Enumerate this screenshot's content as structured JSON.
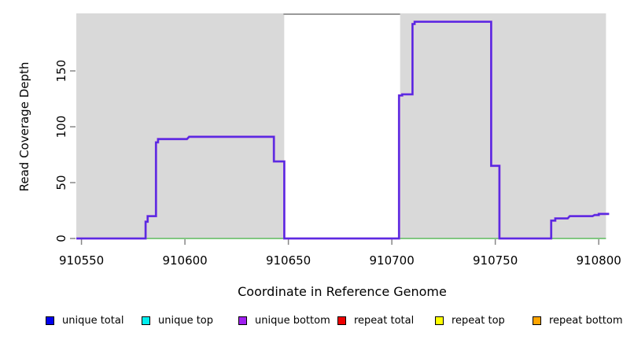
{
  "chart_data": {
    "type": "line",
    "title": "",
    "xlabel": "Coordinate in Reference Genome",
    "ylabel": "Read Coverage Depth",
    "xlim": [
      910547.5,
      910804.5
    ],
    "ylim": [
      0,
      201.5
    ],
    "x_ticks": [
      910550,
      910600,
      910650,
      910700,
      910750,
      910800
    ],
    "x_tick_labels": [
      "910550",
      "910600",
      "910650",
      "910700",
      "910750",
      "910800"
    ],
    "y_ticks": [
      0,
      50,
      100,
      150
    ],
    "y_tick_labels": [
      "0",
      "50",
      "100",
      "150"
    ],
    "grid": false,
    "legend_position": "bottom",
    "shaded_regions": [
      {
        "name": "covered-block-left",
        "x0": 910547.5,
        "x1": 910648
      },
      {
        "name": "covered-block-right",
        "x0": 910704,
        "x1": 910803.5
      }
    ],
    "gap_region": {
      "name": "uncovered-gap",
      "x0": 910648,
      "x1": 910704
    },
    "series": [
      {
        "name": "unique bottom / unique total coverage (overlapping lines)",
        "points": [
          [
            910547.5,
            0
          ],
          [
            910581,
            0
          ],
          [
            910581,
            15
          ],
          [
            910582,
            15
          ],
          [
            910582,
            20
          ],
          [
            910586,
            20
          ],
          [
            910586,
            86
          ],
          [
            910587,
            86
          ],
          [
            910587,
            89
          ],
          [
            910601,
            89
          ],
          [
            910602,
            91
          ],
          [
            910643,
            91
          ],
          [
            910643,
            69
          ],
          [
            910648,
            69
          ],
          [
            910648,
            0
          ],
          [
            910703.5,
            0
          ],
          [
            910703.5,
            128
          ],
          [
            910705,
            128
          ],
          [
            910705,
            129
          ],
          [
            910710,
            129
          ],
          [
            910710,
            192
          ],
          [
            910711,
            192
          ],
          [
            910711,
            194
          ],
          [
            910748,
            194
          ],
          [
            910748,
            65
          ],
          [
            910752,
            65
          ],
          [
            910752,
            0
          ],
          [
            910777,
            0
          ],
          [
            910777,
            16
          ],
          [
            910779,
            16
          ],
          [
            910779,
            18
          ],
          [
            910785,
            18
          ],
          [
            910786,
            20
          ],
          [
            910797,
            20
          ],
          [
            910798,
            21
          ],
          [
            910800,
            21
          ],
          [
            910800,
            22
          ],
          [
            910805,
            22
          ]
        ]
      },
      {
        "name": "zero baseline (repeat coverage = 0)",
        "points": [
          [
            910547.5,
            0
          ],
          [
            910803.5,
            0
          ]
        ]
      }
    ],
    "legend": [
      {
        "label": "unique total",
        "color": "#0000ee"
      },
      {
        "label": "unique top",
        "color": "#00eeee"
      },
      {
        "label": "unique bottom",
        "color": "#a020f0"
      },
      {
        "label": "repeat total",
        "color": "#ee0000"
      },
      {
        "label": "repeat top",
        "color": "#ffff00"
      },
      {
        "label": "repeat bottom",
        "color": "#ffa500"
      }
    ],
    "colors": {
      "shaded_band": "#d9d9d9",
      "gap_top_border": "#999999",
      "axis_ticks": "#878787",
      "zero_baseline": "#5dba5d",
      "coverage_line_outer": "#8833e0",
      "coverage_line_inner": "#4b2be2"
    }
  }
}
